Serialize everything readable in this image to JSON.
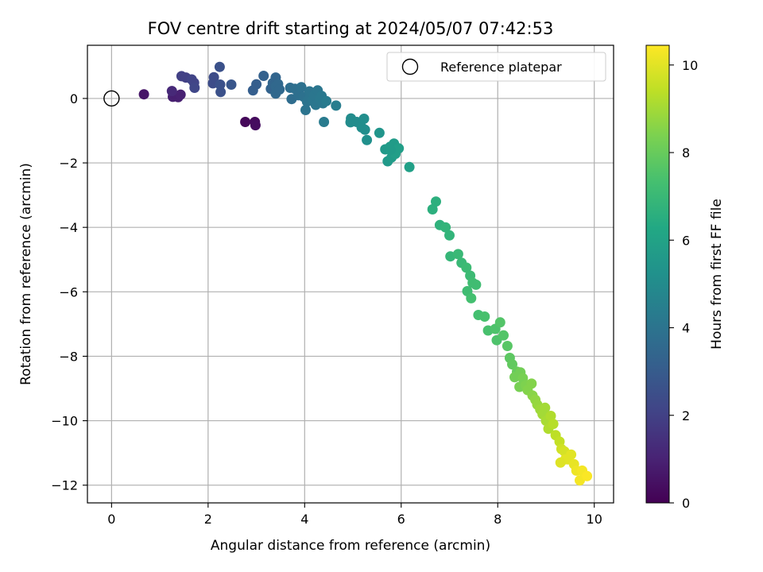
{
  "chart_data": {
    "type": "scatter",
    "title": "FOV centre drift starting at 2024/05/07 07:42:53",
    "xlabel": "Angular distance from reference (arcmin)",
    "ylabel": "Rotation from reference (arcmin)",
    "xlim": [
      -0.5,
      10.4
    ],
    "ylim": [
      -12.55,
      1.65
    ],
    "xticks": [
      0,
      2,
      4,
      6,
      8,
      10
    ],
    "yticks": [
      0,
      -2,
      -4,
      -6,
      -8,
      -10,
      -12
    ],
    "grid": true,
    "legend": {
      "position": "top-right",
      "entries": [
        {
          "label": "Reference platepar",
          "marker": "open-circle"
        }
      ]
    },
    "reference_point": {
      "x": 0,
      "y": 0
    },
    "colorbar": {
      "label": "Hours from first FF file",
      "colormap": "viridis",
      "range": [
        0,
        10.45
      ],
      "ticks": [
        0,
        2,
        4,
        6,
        8,
        10
      ]
    },
    "points": [
      [
        0.67,
        0.13,
        0.6
      ],
      [
        1.27,
        0.05,
        0.9
      ],
      [
        1.38,
        0.04,
        0.9
      ],
      [
        1.43,
        0.12,
        0.95
      ],
      [
        1.25,
        0.23,
        1.2
      ],
      [
        2.77,
        -0.73,
        0.2
      ],
      [
        2.97,
        -0.73,
        0.3
      ],
      [
        2.98,
        -0.83,
        0.35
      ],
      [
        1.45,
        0.69,
        2.0
      ],
      [
        1.54,
        0.65,
        2.0
      ],
      [
        1.66,
        0.59,
        2.1
      ],
      [
        1.71,
        0.49,
        2.1
      ],
      [
        1.72,
        0.33,
        2.2
      ],
      [
        2.12,
        0.66,
        2.4
      ],
      [
        2.1,
        0.47,
        2.4
      ],
      [
        2.24,
        0.98,
        2.6
      ],
      [
        2.25,
        0.43,
        2.6
      ],
      [
        2.26,
        0.2,
        2.6
      ],
      [
        2.48,
        0.43,
        2.8
      ],
      [
        2.93,
        0.25,
        3.1
      ],
      [
        3.0,
        0.44,
        3.1
      ],
      [
        3.15,
        0.7,
        3.2
      ],
      [
        3.3,
        0.3,
        3.3
      ],
      [
        3.34,
        0.48,
        3.4
      ],
      [
        3.4,
        0.65,
        3.4
      ],
      [
        3.4,
        0.38,
        3.5
      ],
      [
        3.45,
        0.45,
        3.5
      ],
      [
        3.4,
        0.15,
        3.5
      ],
      [
        3.48,
        0.28,
        3.5
      ],
      [
        3.7,
        0.33,
        3.7
      ],
      [
        3.73,
        -0.02,
        3.7
      ],
      [
        3.8,
        0.3,
        3.8
      ],
      [
        3.87,
        0.1,
        3.8
      ],
      [
        3.93,
        0.35,
        3.9
      ],
      [
        3.98,
        0.05,
        3.9
      ],
      [
        4.05,
        -0.1,
        4.0
      ],
      [
        4.02,
        -0.36,
        4.0
      ],
      [
        4.1,
        0.0,
        4.0
      ],
      [
        4.1,
        0.22,
        4.0
      ],
      [
        4.16,
        -0.06,
        4.1
      ],
      [
        4.2,
        0.1,
        4.1
      ],
      [
        4.23,
        -0.2,
        4.1
      ],
      [
        4.27,
        0.25,
        4.1
      ],
      [
        4.32,
        -0.02,
        4.2
      ],
      [
        4.35,
        0.08,
        4.2
      ],
      [
        4.38,
        -0.15,
        4.2
      ],
      [
        4.4,
        -0.73,
        4.3
      ],
      [
        4.45,
        -0.08,
        4.3
      ],
      [
        4.65,
        -0.22,
        4.4
      ],
      [
        4.96,
        -0.62,
        5.0
      ],
      [
        4.95,
        -0.74,
        5.0
      ],
      [
        5.08,
        -0.73,
        5.0
      ],
      [
        5.18,
        -0.9,
        5.1
      ],
      [
        5.25,
        -0.97,
        5.1
      ],
      [
        5.23,
        -0.63,
        5.1
      ],
      [
        5.29,
        -1.29,
        5.2
      ],
      [
        5.55,
        -1.07,
        5.4
      ],
      [
        5.67,
        -1.58,
        5.6
      ],
      [
        5.72,
        -1.95,
        5.6
      ],
      [
        5.77,
        -1.5,
        5.7
      ],
      [
        5.8,
        -1.83,
        5.7
      ],
      [
        5.85,
        -1.4,
        5.7
      ],
      [
        5.88,
        -1.72,
        5.8
      ],
      [
        5.95,
        -1.55,
        5.8
      ],
      [
        5.78,
        -1.6,
        5.7
      ],
      [
        6.17,
        -2.13,
        5.9
      ],
      [
        6.72,
        -3.2,
        6.6
      ],
      [
        6.65,
        -3.44,
        6.6
      ],
      [
        6.8,
        -3.93,
        6.7
      ],
      [
        6.92,
        -4.0,
        6.8
      ],
      [
        7.0,
        -4.25,
        6.8
      ],
      [
        7.02,
        -4.9,
        6.9
      ],
      [
        7.18,
        -4.83,
        7.0
      ],
      [
        7.25,
        -5.1,
        7.0
      ],
      [
        7.35,
        -5.25,
        7.1
      ],
      [
        7.43,
        -5.5,
        7.1
      ],
      [
        7.48,
        -5.72,
        7.2
      ],
      [
        7.37,
        -5.98,
        7.2
      ],
      [
        7.55,
        -5.78,
        7.2
      ],
      [
        7.45,
        -6.2,
        7.3
      ],
      [
        7.6,
        -6.72,
        7.3
      ],
      [
        7.73,
        -6.77,
        7.4
      ],
      [
        7.8,
        -7.2,
        7.4
      ],
      [
        7.95,
        -7.15,
        7.5
      ],
      [
        7.98,
        -7.5,
        7.5
      ],
      [
        8.05,
        -6.95,
        7.6
      ],
      [
        8.12,
        -7.35,
        7.6
      ],
      [
        8.2,
        -7.68,
        7.7
      ],
      [
        8.25,
        -8.05,
        7.8
      ],
      [
        8.3,
        -8.25,
        7.9
      ],
      [
        8.4,
        -8.48,
        8.0
      ],
      [
        8.35,
        -8.65,
        8.2
      ],
      [
        8.47,
        -8.5,
        8.2
      ],
      [
        8.52,
        -8.68,
        8.3
      ],
      [
        8.45,
        -8.95,
        8.3
      ],
      [
        8.58,
        -8.9,
        8.4
      ],
      [
        8.62,
        -9.05,
        8.5
      ],
      [
        8.7,
        -8.85,
        8.5
      ],
      [
        8.72,
        -9.22,
        8.6
      ],
      [
        8.78,
        -9.35,
        8.7
      ],
      [
        8.82,
        -9.5,
        8.8
      ],
      [
        8.88,
        -9.65,
        8.9
      ],
      [
        8.93,
        -9.8,
        9.0
      ],
      [
        8.98,
        -9.6,
        9.0
      ],
      [
        9.0,
        -10.0,
        9.1
      ],
      [
        9.05,
        -10.25,
        9.2
      ],
      [
        9.1,
        -9.85,
        9.2
      ],
      [
        9.15,
        -10.1,
        9.3
      ],
      [
        9.2,
        -10.45,
        9.4
      ],
      [
        9.28,
        -10.65,
        9.5
      ],
      [
        9.32,
        -10.88,
        9.7
      ],
      [
        9.38,
        -10.95,
        9.8
      ],
      [
        9.45,
        -11.2,
        9.9
      ],
      [
        9.52,
        -11.05,
        10.0
      ],
      [
        9.58,
        -11.35,
        10.1
      ],
      [
        9.63,
        -11.55,
        10.2
      ],
      [
        9.7,
        -11.85,
        10.3
      ],
      [
        9.75,
        -11.55,
        10.3
      ],
      [
        9.85,
        -11.72,
        10.4
      ],
      [
        9.4,
        -11.2,
        10.0
      ],
      [
        9.3,
        -11.3,
        9.95
      ]
    ]
  }
}
